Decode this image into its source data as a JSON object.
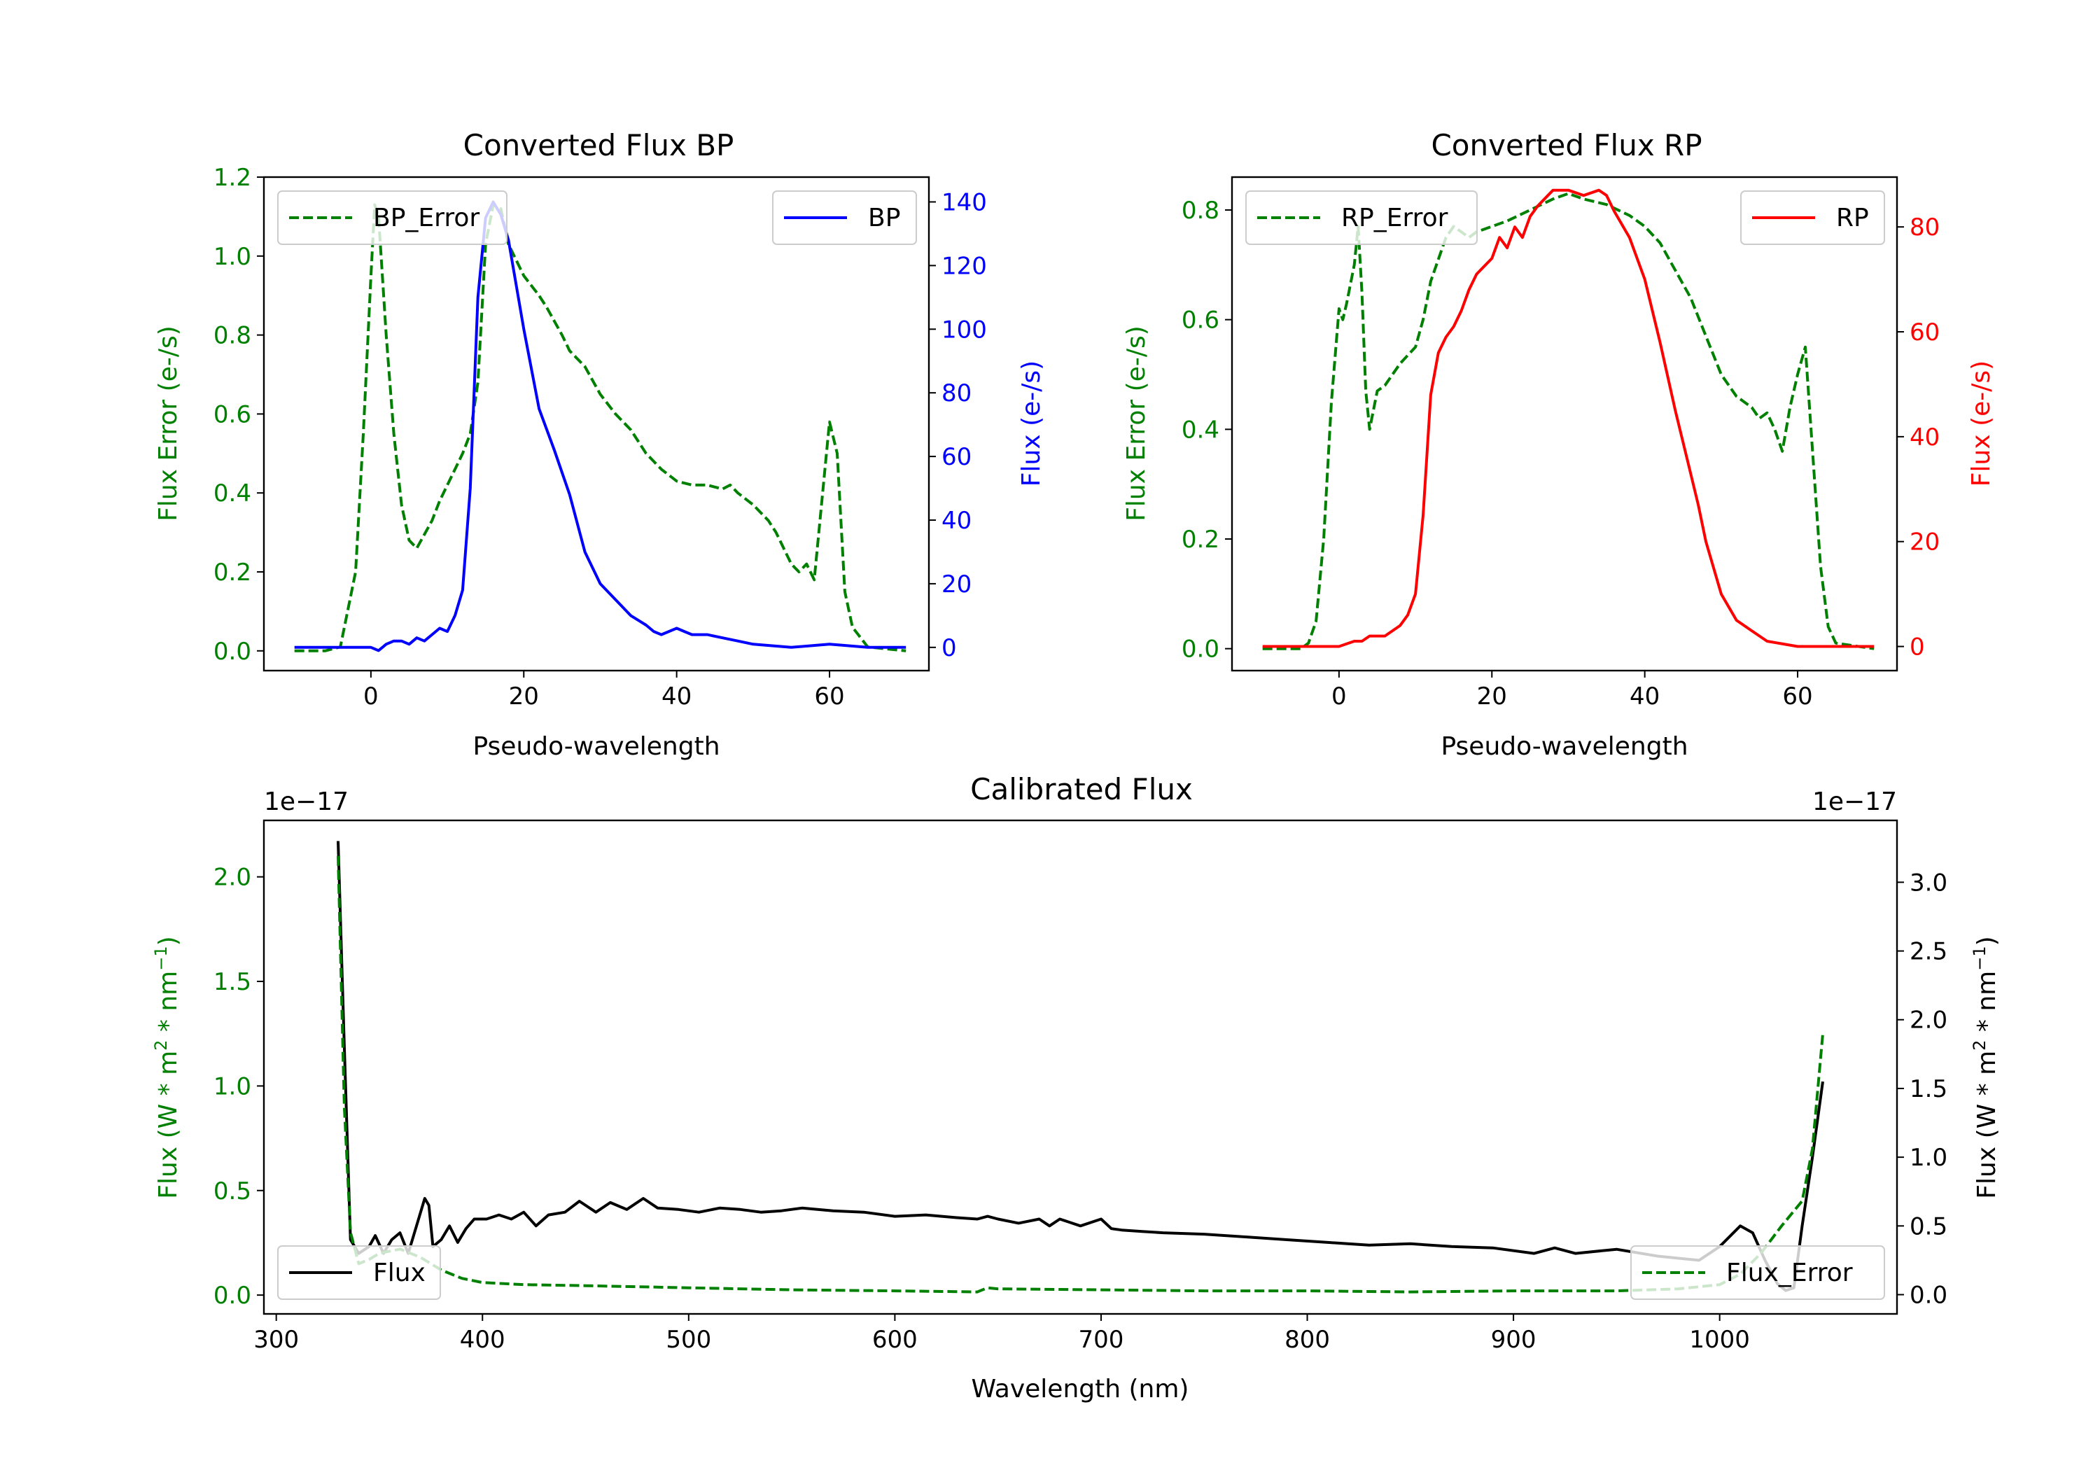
{
  "colors": {
    "green": "#008000",
    "blue": "#0000ff",
    "red": "#ff0000",
    "black": "#000000"
  },
  "chart_data": [
    {
      "type": "line",
      "title": "Converted Flux BP",
      "xlabel": "Pseudo-wavelength",
      "ylabel_left": "Flux Error (e-/s)",
      "ylabel_right": "Flux (e-/s)",
      "xlim": [
        -14,
        73
      ],
      "ylim_left": [
        -0.05,
        1.2
      ],
      "ylim_right": [
        -7.3,
        147.8
      ],
      "xticks": [
        0,
        20,
        40,
        60
      ],
      "xtick_labels": [
        "0",
        "20",
        "40",
        "60"
      ],
      "yticks_left": [
        0.0,
        0.2,
        0.4,
        0.6,
        0.8,
        1.0,
        1.2
      ],
      "ytick_labels_left": [
        "0.0",
        "0.2",
        "0.4",
        "0.6",
        "0.8",
        "1.0",
        "1.2"
      ],
      "yticks_right": [
        0,
        20,
        40,
        60,
        80,
        100,
        120,
        140
      ],
      "ytick_labels_right": [
        "0",
        "20",
        "40",
        "60",
        "80",
        "100",
        "120",
        "140"
      ],
      "legend_left": "upper-left",
      "legend_right": "upper-right",
      "series": [
        {
          "name": "BP_Error",
          "axis": "left",
          "style": "dashed",
          "color": "#008000",
          "x": [
            -10,
            -6,
            -4,
            -2,
            -1,
            0,
            0.5,
            1,
            2,
            3,
            4,
            5,
            6,
            8,
            9,
            10,
            12,
            13,
            14,
            15,
            16,
            17,
            18,
            20,
            22,
            23,
            25,
            26,
            28,
            30,
            32,
            34,
            36,
            38,
            40,
            42,
            44,
            46,
            47,
            48,
            50,
            52,
            53,
            55,
            56,
            57,
            58,
            59,
            60,
            61,
            62,
            63,
            65,
            70
          ],
          "y": [
            0.0,
            0.0,
            0.01,
            0.2,
            0.55,
            0.95,
            1.13,
            1.1,
            0.8,
            0.55,
            0.37,
            0.28,
            0.26,
            0.33,
            0.38,
            0.42,
            0.5,
            0.55,
            0.68,
            1.03,
            1.13,
            1.12,
            1.03,
            0.95,
            0.9,
            0.87,
            0.8,
            0.76,
            0.72,
            0.65,
            0.6,
            0.56,
            0.5,
            0.46,
            0.43,
            0.42,
            0.42,
            0.41,
            0.42,
            0.4,
            0.37,
            0.33,
            0.3,
            0.22,
            0.2,
            0.22,
            0.18,
            0.38,
            0.58,
            0.5,
            0.15,
            0.06,
            0.01,
            0.0
          ]
        },
        {
          "name": "BP",
          "axis": "right",
          "style": "solid",
          "color": "#0000ff",
          "x": [
            -10,
            -5,
            -2,
            0,
            1,
            2,
            3,
            4,
            5,
            6,
            7,
            8,
            9,
            10,
            11,
            12,
            13,
            14,
            15,
            16,
            17,
            18,
            20,
            22,
            24,
            26,
            28,
            30,
            32,
            34,
            36,
            37,
            38,
            40,
            41,
            42,
            44,
            46,
            48,
            50,
            55,
            60,
            65,
            70
          ],
          "y": [
            0,
            0,
            0,
            0,
            -1,
            1,
            2,
            2,
            1,
            3,
            2,
            4,
            6,
            5,
            10,
            18,
            50,
            110,
            135,
            140,
            136,
            128,
            100,
            75,
            62,
            48,
            30,
            20,
            15,
            10,
            7,
            5,
            4,
            6,
            5,
            4,
            4,
            3,
            2,
            1,
            0,
            1,
            0,
            0
          ]
        }
      ]
    },
    {
      "type": "line",
      "title": "Converted Flux RP",
      "xlabel": "Pseudo-wavelength",
      "ylabel_left": "Flux Error (e-/s)",
      "ylabel_right": "Flux (e-/s)",
      "xlim": [
        -14,
        73
      ],
      "ylim_left": [
        -0.04,
        0.86
      ],
      "ylim_right": [
        -4.6,
        89.5
      ],
      "xticks": [
        0,
        20,
        40,
        60
      ],
      "xtick_labels": [
        "0",
        "20",
        "40",
        "60"
      ],
      "yticks_left": [
        0.0,
        0.2,
        0.4,
        0.6,
        0.8
      ],
      "ytick_labels_left": [
        "0.0",
        "0.2",
        "0.4",
        "0.6",
        "0.8"
      ],
      "yticks_right": [
        0,
        20,
        40,
        60,
        80
      ],
      "ytick_labels_right": [
        "0",
        "20",
        "40",
        "60",
        "80"
      ],
      "legend_left": "upper-left",
      "legend_right": "upper-right",
      "series": [
        {
          "name": "RP_Error",
          "axis": "left",
          "style": "dashed",
          "color": "#008000",
          "x": [
            -10,
            -5,
            -4,
            -3,
            -2,
            -1,
            0,
            0.5,
            1,
            2,
            2.5,
            3,
            3.5,
            4,
            5,
            6,
            7,
            8,
            10,
            11,
            12,
            14,
            15,
            16,
            17,
            18,
            20,
            22,
            25,
            28,
            30,
            32,
            35,
            38,
            40,
            42,
            44,
            46,
            48,
            50,
            52,
            54,
            55,
            56,
            57,
            58,
            59,
            60,
            61,
            62,
            63,
            64,
            65,
            70
          ],
          "y": [
            0.0,
            0.0,
            0.01,
            0.05,
            0.2,
            0.45,
            0.62,
            0.6,
            0.63,
            0.7,
            0.77,
            0.65,
            0.47,
            0.4,
            0.47,
            0.48,
            0.5,
            0.52,
            0.55,
            0.6,
            0.67,
            0.75,
            0.77,
            0.76,
            0.75,
            0.76,
            0.77,
            0.78,
            0.8,
            0.82,
            0.83,
            0.82,
            0.81,
            0.79,
            0.77,
            0.74,
            0.69,
            0.64,
            0.57,
            0.5,
            0.46,
            0.44,
            0.42,
            0.43,
            0.4,
            0.36,
            0.44,
            0.5,
            0.55,
            0.35,
            0.15,
            0.04,
            0.01,
            0.0
          ]
        },
        {
          "name": "RP",
          "axis": "right",
          "style": "solid",
          "color": "#ff0000",
          "x": [
            -10,
            -5,
            -2,
            0,
            2,
            3,
            4,
            5,
            6,
            7,
            8,
            9,
            10,
            11,
            12,
            13,
            14,
            15,
            16,
            17,
            18,
            20,
            21,
            22,
            23,
            24,
            25,
            26,
            28,
            30,
            32,
            34,
            35,
            36,
            38,
            40,
            42,
            44,
            46,
            47,
            48,
            50,
            52,
            54,
            56,
            60,
            65,
            70
          ],
          "y": [
            0,
            0,
            0,
            0,
            1,
            1,
            2,
            2,
            2,
            3,
            4,
            6,
            10,
            25,
            48,
            56,
            59,
            61,
            64,
            68,
            71,
            74,
            78,
            76,
            80,
            78,
            82,
            84,
            87,
            87,
            86,
            87,
            86,
            83,
            78,
            70,
            58,
            45,
            33,
            27,
            20,
            10,
            5,
            3,
            1,
            0,
            0,
            0
          ]
        }
      ]
    },
    {
      "type": "line",
      "title": "Calibrated Flux",
      "xlabel": "Wavelength (nm)",
      "ylabel_left": "Flux (W * m^2 * nm^-1)",
      "ylabel_right": "Flux (W * m^2 * nm^-1)",
      "offset_left": "1e−17",
      "offset_right": "1e−17",
      "xlim": [
        294,
        1086
      ],
      "ylim_left": [
        -0.09,
        2.27
      ],
      "ylim_right": [
        -0.14,
        3.45
      ],
      "xticks": [
        300,
        400,
        500,
        600,
        700,
        800,
        900,
        1000
      ],
      "xtick_labels": [
        "300",
        "400",
        "500",
        "600",
        "700",
        "800",
        "900",
        "1000"
      ],
      "yticks_left": [
        0.0,
        0.5,
        1.0,
        1.5,
        2.0
      ],
      "ytick_labels_left": [
        "0.0",
        "0.5",
        "1.0",
        "1.5",
        "2.0"
      ],
      "yticks_right": [
        0.0,
        0.5,
        1.0,
        1.5,
        2.0,
        2.5,
        3.0
      ],
      "ytick_labels_right": [
        "0.0",
        "0.5",
        "1.0",
        "1.5",
        "2.0",
        "2.5",
        "3.0"
      ],
      "legend_left": "lower-left",
      "legend_right": "lower-right",
      "series": [
        {
          "name": "Flux",
          "axis": "right",
          "style": "solid",
          "color": "#000000",
          "x": [
            330,
            333,
            336,
            340,
            345,
            348,
            352,
            356,
            360,
            364,
            368,
            372,
            374,
            376,
            380,
            384,
            388,
            392,
            396,
            402,
            408,
            414,
            420,
            426,
            432,
            440,
            447,
            455,
            462,
            470,
            478,
            485,
            495,
            505,
            515,
            525,
            535,
            545,
            555,
            570,
            585,
            600,
            615,
            630,
            640,
            645,
            650,
            660,
            670,
            675,
            680,
            690,
            700,
            705,
            710,
            720,
            730,
            750,
            770,
            790,
            810,
            830,
            850,
            870,
            890,
            910,
            920,
            930,
            950,
            970,
            990,
            1000,
            1010,
            1016,
            1022,
            1028,
            1032,
            1036,
            1040,
            1045,
            1050
          ],
          "y": [
            3.3,
            1.8,
            0.4,
            0.3,
            0.35,
            0.43,
            0.3,
            0.4,
            0.45,
            0.3,
            0.5,
            0.7,
            0.65,
            0.35,
            0.4,
            0.5,
            0.38,
            0.48,
            0.55,
            0.55,
            0.58,
            0.55,
            0.6,
            0.5,
            0.58,
            0.6,
            0.68,
            0.6,
            0.67,
            0.62,
            0.7,
            0.63,
            0.62,
            0.6,
            0.63,
            0.62,
            0.6,
            0.61,
            0.63,
            0.61,
            0.6,
            0.57,
            0.58,
            0.56,
            0.55,
            0.57,
            0.55,
            0.52,
            0.55,
            0.5,
            0.55,
            0.5,
            0.55,
            0.48,
            0.47,
            0.46,
            0.45,
            0.44,
            0.42,
            0.4,
            0.38,
            0.36,
            0.37,
            0.35,
            0.34,
            0.3,
            0.34,
            0.3,
            0.33,
            0.28,
            0.25,
            0.35,
            0.5,
            0.45,
            0.25,
            0.08,
            0.03,
            0.05,
            0.5,
            1.0,
            1.55
          ]
        },
        {
          "name": "Flux_Error",
          "axis": "left",
          "style": "dashed",
          "color": "#008000",
          "x": [
            330,
            333,
            336,
            340,
            345,
            350,
            360,
            370,
            380,
            390,
            400,
            420,
            450,
            500,
            550,
            600,
            640,
            645,
            650,
            700,
            750,
            800,
            850,
            900,
            950,
            980,
            1000,
            1010,
            1020,
            1030,
            1040,
            1045,
            1050
          ],
          "y": [
            2.1,
            0.9,
            0.3,
            0.15,
            0.17,
            0.2,
            0.22,
            0.18,
            0.12,
            0.08,
            0.06,
            0.05,
            0.045,
            0.035,
            0.025,
            0.02,
            0.015,
            0.035,
            0.03,
            0.025,
            0.02,
            0.02,
            0.015,
            0.02,
            0.02,
            0.03,
            0.05,
            0.1,
            0.2,
            0.33,
            0.45,
            0.7,
            1.25
          ]
        }
      ]
    }
  ]
}
